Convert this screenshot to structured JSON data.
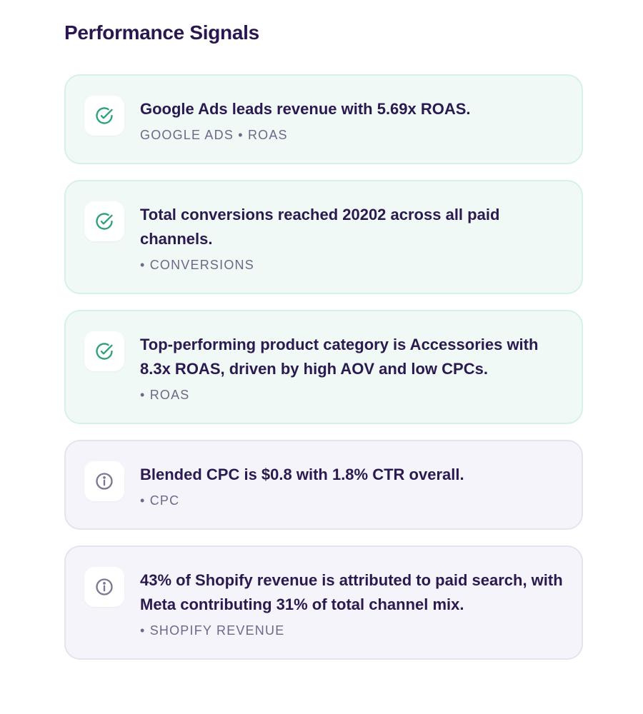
{
  "section": {
    "title": "Performance Signals"
  },
  "signals": [
    {
      "status": "success",
      "icon": "check-circle-icon",
      "text": "Google Ads leads revenue with 5.69x ROAS.",
      "meta": "GOOGLE ADS • ROAS"
    },
    {
      "status": "success",
      "icon": "check-circle-icon",
      "text": "Total conversions reached 20202 across all paid channels.",
      "meta": "• CONVERSIONS"
    },
    {
      "status": "success",
      "icon": "check-circle-icon",
      "text": "Top-performing product category is Accessories with 8.3x ROAS, driven by high AOV and low CPCs.",
      "meta": "• ROAS"
    },
    {
      "status": "info",
      "icon": "info-circle-icon",
      "text": "Blended CPC is $0.8 with 1.8% CTR overall.",
      "meta": "• CPC"
    },
    {
      "status": "info",
      "icon": "info-circle-icon",
      "text": "43% of Shopify revenue is attributed to paid search, with Meta contributing 31% of total channel mix.",
      "meta": "• SHOPIFY REVENUE"
    }
  ],
  "colors": {
    "success_icon": "#2fa07a",
    "info_icon": "#7c7893",
    "success_bg": "#f0f9f6",
    "info_bg": "#f6f4fb",
    "title": "#2a1650"
  }
}
